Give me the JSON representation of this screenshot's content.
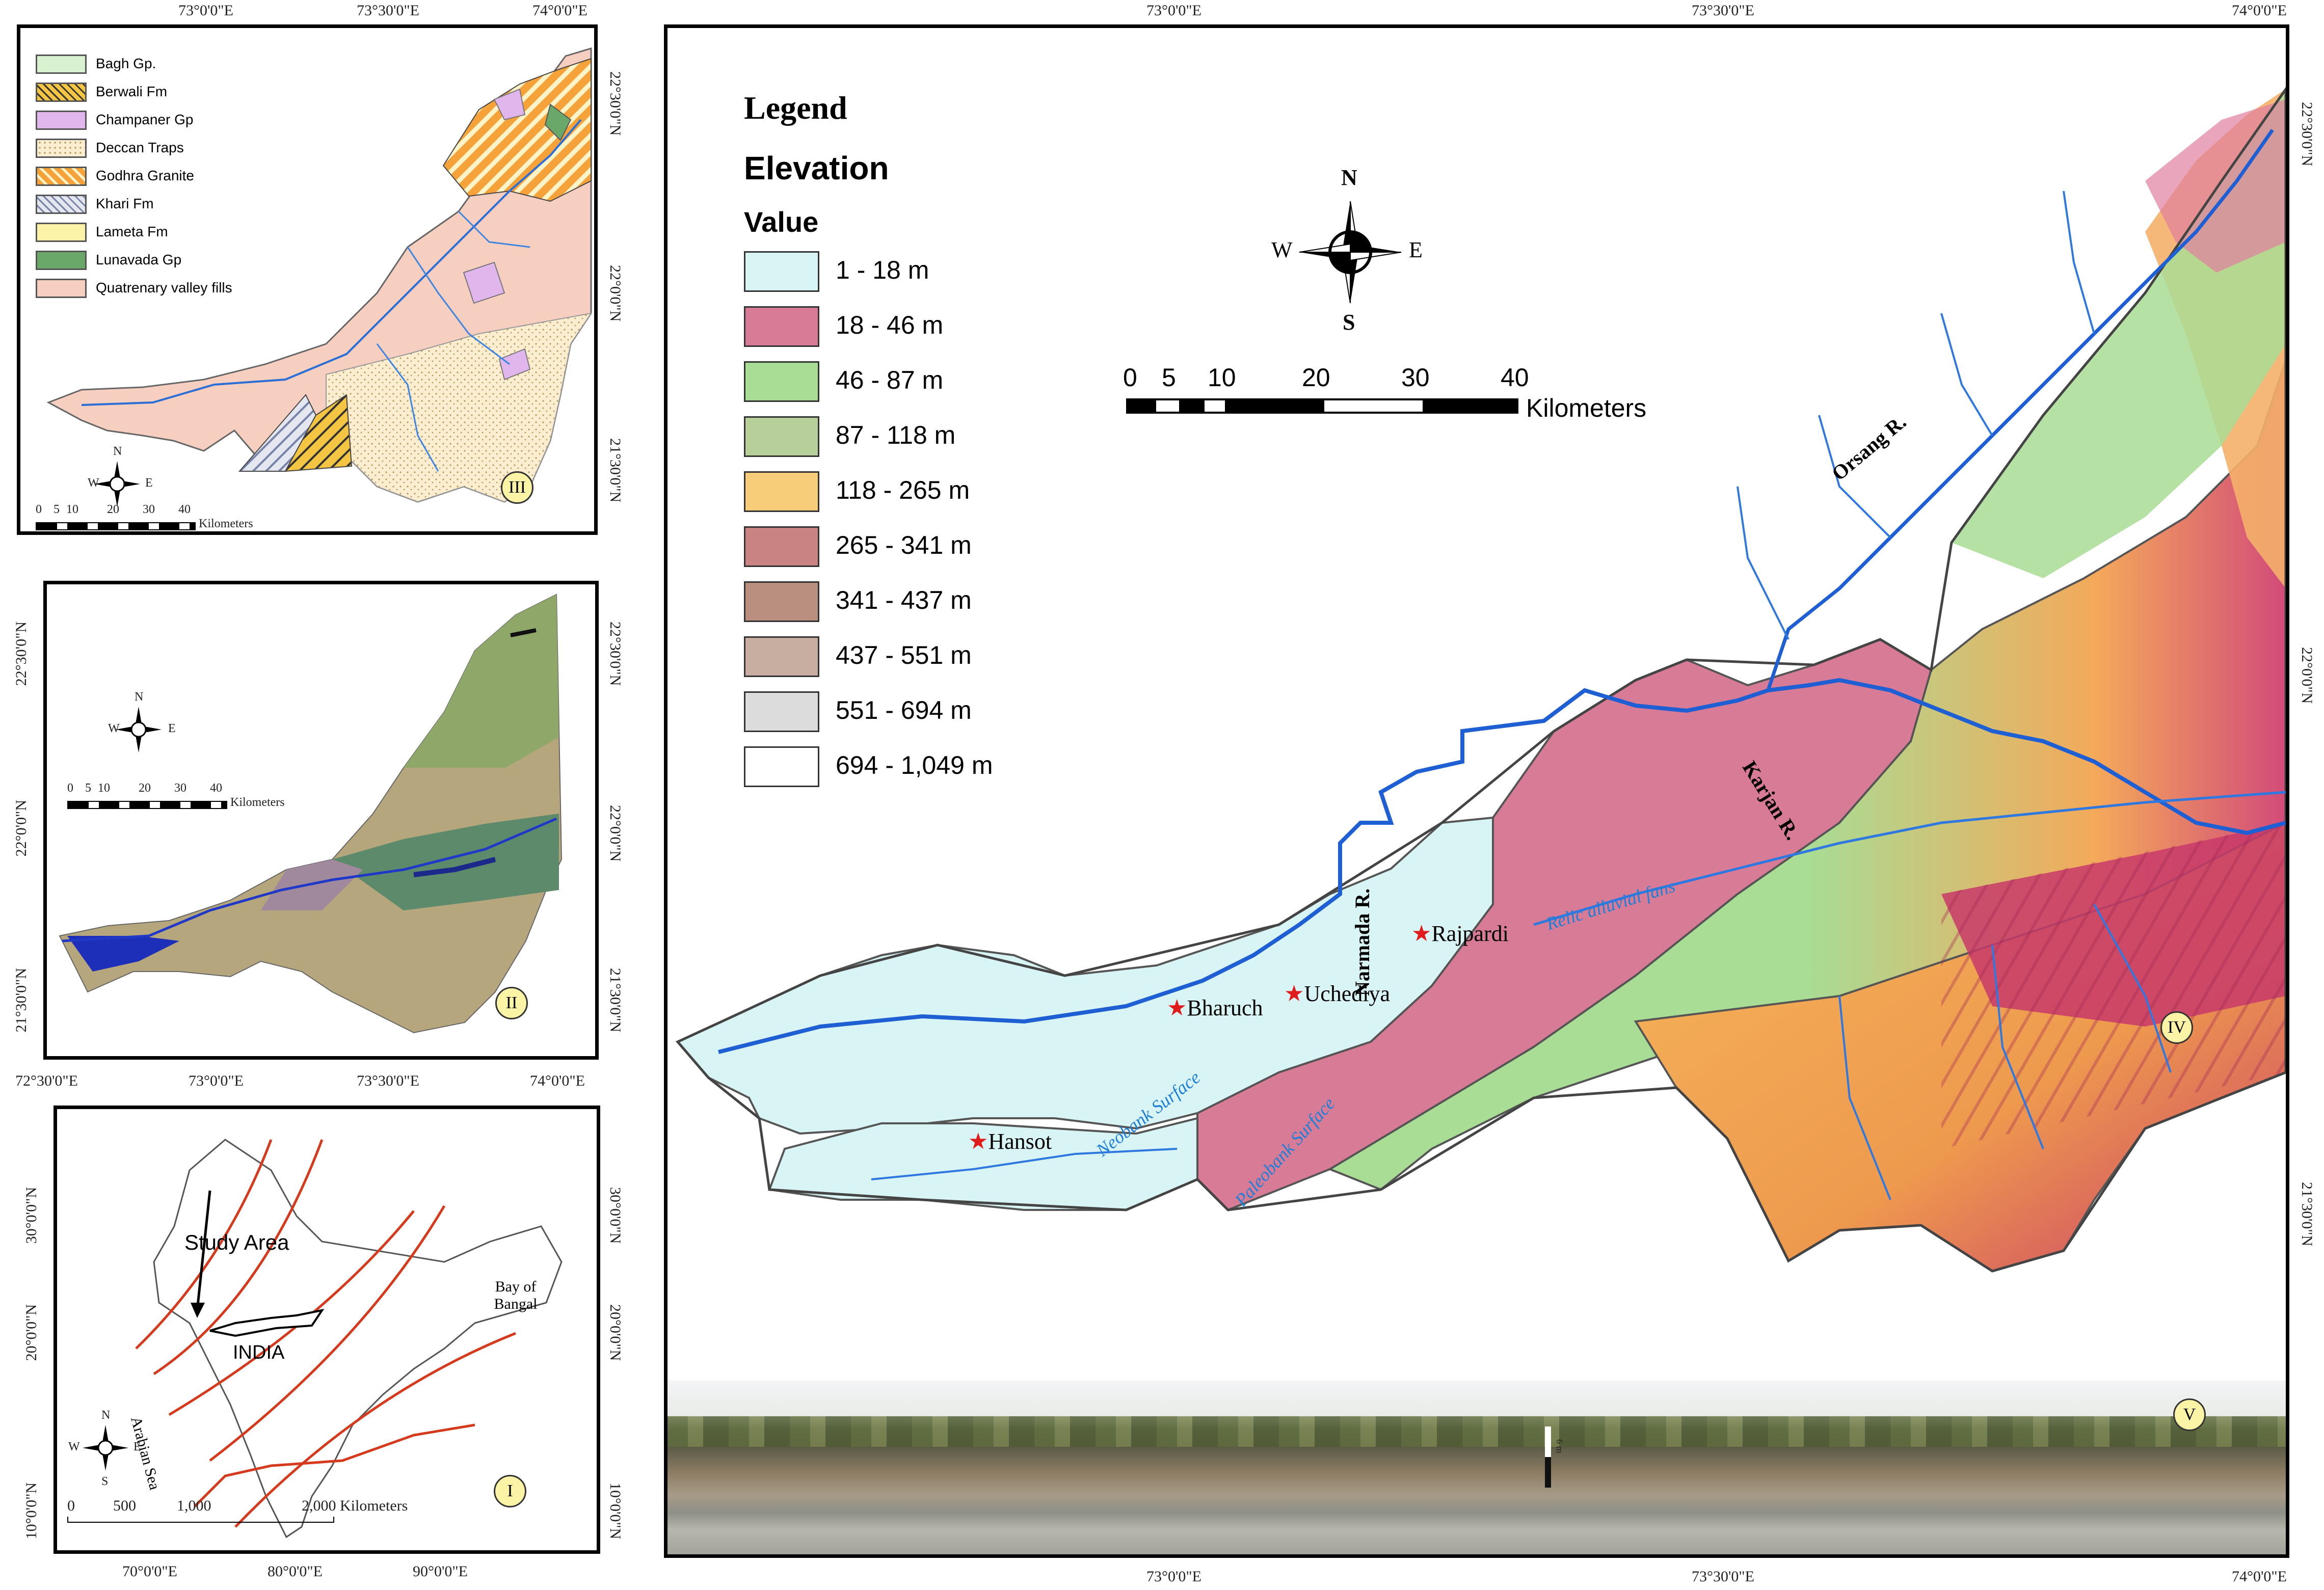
{
  "panel_i": {
    "label": "I",
    "x_ticks": [
      "70°0'0\"E",
      "80°0'0\"E",
      "90°0'0\"E"
    ],
    "y_ticks_left": [
      "30°0'0\"N",
      "20°0'0\"N",
      "10°0'0\"N"
    ],
    "y_ticks_right": [
      "30°0'0\"N",
      "20°0'0\"N",
      "10°0'0\"N"
    ],
    "study_area": "Study Area",
    "country": "INDIA",
    "bay": "Bay of Bangal",
    "sea": "Arabian Sea",
    "scale_ticks": [
      "0",
      "500",
      "1,000",
      "2,000 Kilometers"
    ],
    "compass": {
      "n": "N",
      "s": "S",
      "e": "E",
      "w": "W"
    }
  },
  "panel_ii": {
    "label": "II",
    "x_ticks": [
      "72°30'0\"E",
      "73°0'0\"E",
      "73°30'0\"E",
      "74°0'0\"E"
    ],
    "y_ticks_left": [
      "22°30'0\"N",
      "22°0'0\"N",
      "21°30'0\"N"
    ],
    "y_ticks_right": [
      "22°30'0\"N",
      "22°0'0\"N",
      "21°30'0\"N"
    ],
    "scale_ticks": [
      "0",
      "5",
      "10",
      "20",
      "30",
      "40"
    ],
    "scale_unit": "Kilometers",
    "compass": {
      "n": "N",
      "s": "S",
      "e": "E",
      "w": "W"
    }
  },
  "panel_iii": {
    "label": "III",
    "x_ticks": [
      "73°0'0\"E",
      "73°30'0\"E",
      "74°0'0\"E"
    ],
    "y_ticks_right": [
      "22°30'0\"N",
      "22°0'0\"N",
      "21°30'0\"N"
    ],
    "scale_ticks": [
      "0",
      "5",
      "10",
      "20",
      "30",
      "40"
    ],
    "scale_unit": "Kilometers",
    "compass": {
      "n": "N",
      "s": "S",
      "e": "E",
      "w": "W"
    },
    "legend": [
      {
        "label": "Bagh Gp.",
        "color": "#d8f2d0"
      },
      {
        "label": "Berwali Fm",
        "color": "#f4c542"
      },
      {
        "label": "Champaner Gp",
        "color": "#e0b6ec"
      },
      {
        "label": "Deccan Traps",
        "color": "#fbeed0"
      },
      {
        "label": "Godhra Granite",
        "color": "#f6a23a"
      },
      {
        "label": "Khari Fm",
        "color": "#d7dbe8"
      },
      {
        "label": "Lameta Fm",
        "color": "#fdf3a8"
      },
      {
        "label": "Lunavada Gp",
        "color": "#6aa86a"
      },
      {
        "label": "Quatrenary valley fills",
        "color": "#f6cfc0"
      }
    ]
  },
  "main_map": {
    "x_ticks": [
      "73°0'0\"E",
      "73°30'0\"E",
      "74°0'0\"E"
    ],
    "y_ticks_right": [
      "22°30'0\"N",
      "22°0'0\"N",
      "21°30'0\"N"
    ],
    "legend_title": "Legend",
    "elevation_title": "Elevation",
    "value_title": "Value",
    "legend": [
      {
        "label": "1 - 18 m",
        "color": "#d9f4f4"
      },
      {
        "label": "18 - 46 m",
        "color": "#d77b96"
      },
      {
        "label": "46 - 87 m",
        "color": "#a9dc94"
      },
      {
        "label": "87 - 118 m",
        "color": "#b7cf98"
      },
      {
        "label": "118  - 265 m",
        "color": "#f7cd79"
      },
      {
        "label": "265 - 341 m",
        "color": "#c98383"
      },
      {
        "label": "341 - 437 m",
        "color": "#bb8f80"
      },
      {
        "label": "437 - 551 m",
        "color": "#c8aea0"
      },
      {
        "label": "551 - 694 m",
        "color": "#dcdcdc"
      },
      {
        "label": "694 - 1,049 m",
        "color": "#ffffff"
      }
    ],
    "compass": {
      "n": "N",
      "s": "S",
      "e": "E",
      "w": "W"
    },
    "scale_ticks": [
      "0",
      "5",
      "10",
      "20",
      "30",
      "40"
    ],
    "scale_unit": "Kilometers",
    "places": [
      "Rajpardi",
      "Bharuch",
      "Uchediya",
      "Hansot"
    ],
    "rivers": [
      "Orsang R.",
      "Karjan R.",
      "Narmada R."
    ],
    "surfaces": [
      "Relic alluvial fans",
      "Neobank Surface",
      "Paleobank Surface"
    ],
    "inset_label": "IV",
    "photo_label": "V",
    "photo_scale": "6 m"
  }
}
